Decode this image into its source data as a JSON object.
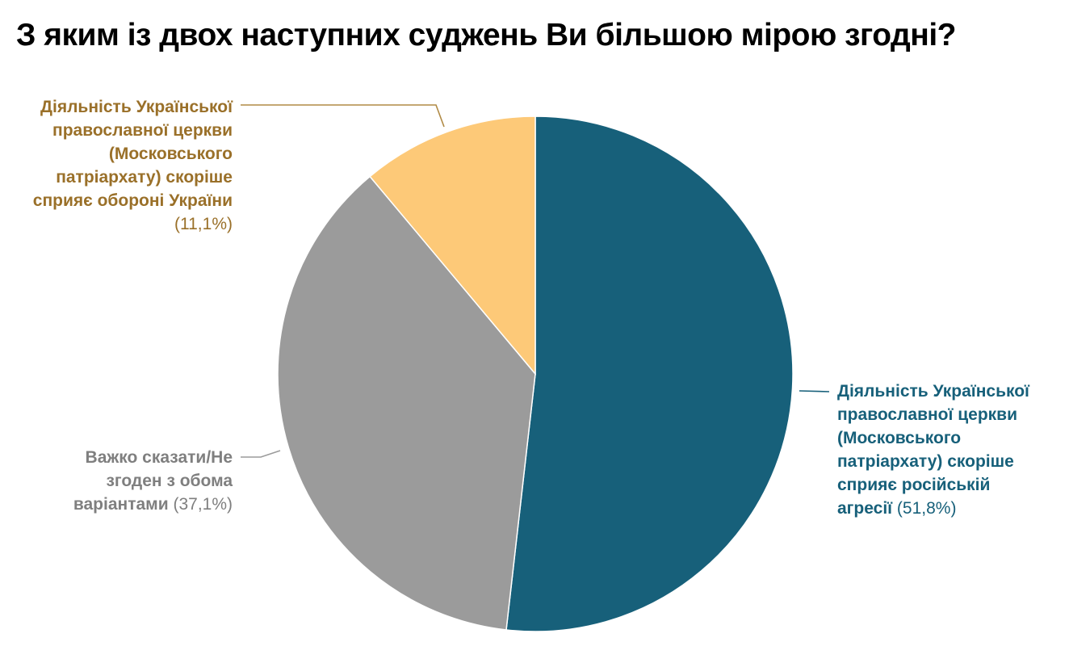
{
  "title": "З яким із двох наступних суджень Ви більшою мірою згодні?",
  "chart_data": {
    "type": "pie",
    "title": "З яким із двох наступних суджень Ви більшою мірою згодні?",
    "categories": [
      "Діяльність Української православної церкви (Московського патріархату) скоріше сприяє російській агресії",
      "Важко сказати/Не згоден з обома варіантами",
      "Діяльність Української православної церкви (Московського патріархату) скоріше сприяє обороні України"
    ],
    "values": [
      51.8,
      37.1,
      11.1
    ],
    "units": "%",
    "colors": [
      "#17607A",
      "#9B9B9B",
      "#FDC978"
    ],
    "start_angle": "12 o'clock, clockwise",
    "legend": "none (callout labels)"
  },
  "labels": {
    "teal": {
      "lines": [
        "Діяльність Української",
        "православної церкви",
        "(Московського",
        "патріархату) скоріше",
        "сприяє російській"
      ],
      "last_bold": "агресії",
      "pct": "(51,8%)",
      "color": "#17607A"
    },
    "gray": {
      "lines": [
        "Важко сказати/Не",
        "згоден з обома"
      ],
      "last_bold": "варіантами",
      "pct": "(37,1%)",
      "color": "#7F7F7F"
    },
    "yellow": {
      "lines": [
        "Діяльність Української",
        "православної церкви",
        "(Московського",
        "патріархату) скоріше",
        "сприяє обороні України"
      ],
      "pct": "(11,1%)",
      "color": "#9A7029"
    }
  }
}
